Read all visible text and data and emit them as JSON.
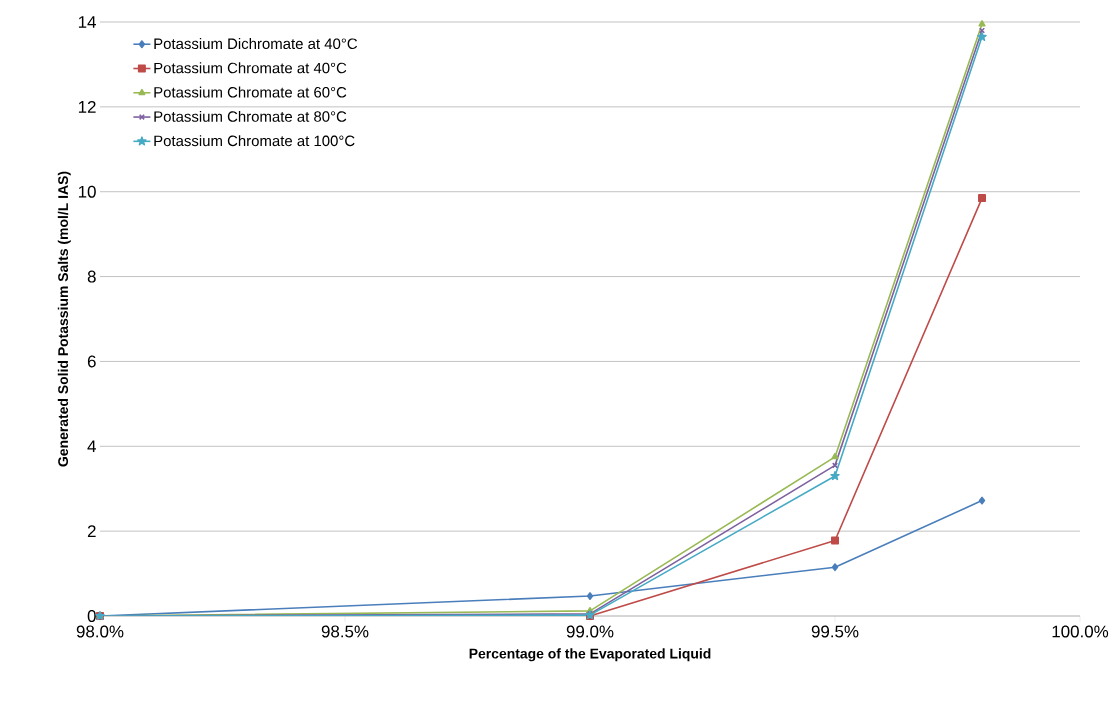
{
  "chart_data": {
    "type": "line",
    "xlabel": "Percentage of the Evaporated Liquid",
    "ylabel": "Generated Solid Potassium Salts (mol/L IAS)",
    "x": [
      98.0,
      99.0,
      99.5,
      99.8
    ],
    "series": [
      {
        "name": "Potassium Dichromate at 40°C",
        "color": "#4a7ebb",
        "marker": "diamond",
        "values": [
          0,
          0.47,
          1.15,
          2.72
        ]
      },
      {
        "name": "Potassium Chromate at 40°C",
        "color": "#be4b48",
        "marker": "square",
        "values": [
          0,
          0,
          1.78,
          9.85
        ]
      },
      {
        "name": "Potassium Chromate at 60°C",
        "color": "#98b954",
        "marker": "triangle",
        "values": [
          0,
          0.12,
          3.75,
          13.95
        ]
      },
      {
        "name": "Potassium Chromate at 80°C",
        "color": "#7d60a0",
        "marker": "cross",
        "values": [
          0,
          0.05,
          3.55,
          13.8
        ]
      },
      {
        "name": "Potassium Chromate at 100°C",
        "color": "#46aac5",
        "marker": "star",
        "values": [
          0,
          0.02,
          3.3,
          13.65
        ]
      }
    ],
    "xlim": [
      98.0,
      100.0
    ],
    "xticks": [
      {
        "value": 98.0,
        "label": "98.0%"
      },
      {
        "value": 98.5,
        "label": "98.5%"
      },
      {
        "value": 99.0,
        "label": "99.0%"
      },
      {
        "value": 99.5,
        "label": "99.5%"
      },
      {
        "value": 100.0,
        "label": "100.0%"
      }
    ],
    "ylim": [
      0,
      14
    ],
    "yticks": [
      0,
      2,
      4,
      6,
      8,
      10,
      12,
      14
    ],
    "grid": "y",
    "legend": "top left",
    "line_style": "solid"
  }
}
